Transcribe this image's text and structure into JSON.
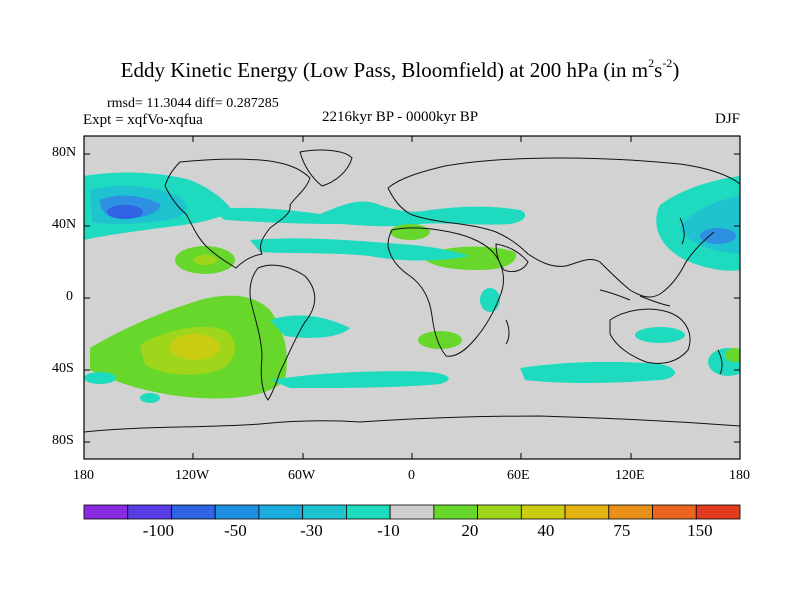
{
  "title_main": "Eddy Kinetic Energy (Low Pass, Bloomfield) at 200 hPa (in m",
  "title_sup1": "2",
  "title_s": "s",
  "title_sup2": "-2",
  "title_close": ")",
  "stats": "rmsd= 11.3044 diff= 0.287285",
  "expt": "Expt = xqfVo-xqfua",
  "period": "2216kyr BP - 0000kyr BP",
  "season": "DJF",
  "lat_labels": [
    "80N",
    "40N",
    "0",
    "40S",
    "80S"
  ],
  "lon_labels": [
    "180",
    "120W",
    "60W",
    "0",
    "60E",
    "120E",
    "180"
  ],
  "colorbar": {
    "colors": [
      "#8a2be2",
      "#5a3ce6",
      "#2f63e4",
      "#1d8fe3",
      "#19acdc",
      "#1ec3cf",
      "#1edbbf",
      "#cfcfcf",
      "#67d82b",
      "#9fd61c",
      "#c9cc12",
      "#e3b30f",
      "#e8901a",
      "#e8661e",
      "#e23c1e"
    ],
    "labels": [
      "-100",
      "-50",
      "-30",
      "-10",
      "20",
      "40",
      "75",
      "150"
    ]
  },
  "colors": {
    "land_background": "#d2d2d2",
    "coast": "#111111"
  }
}
